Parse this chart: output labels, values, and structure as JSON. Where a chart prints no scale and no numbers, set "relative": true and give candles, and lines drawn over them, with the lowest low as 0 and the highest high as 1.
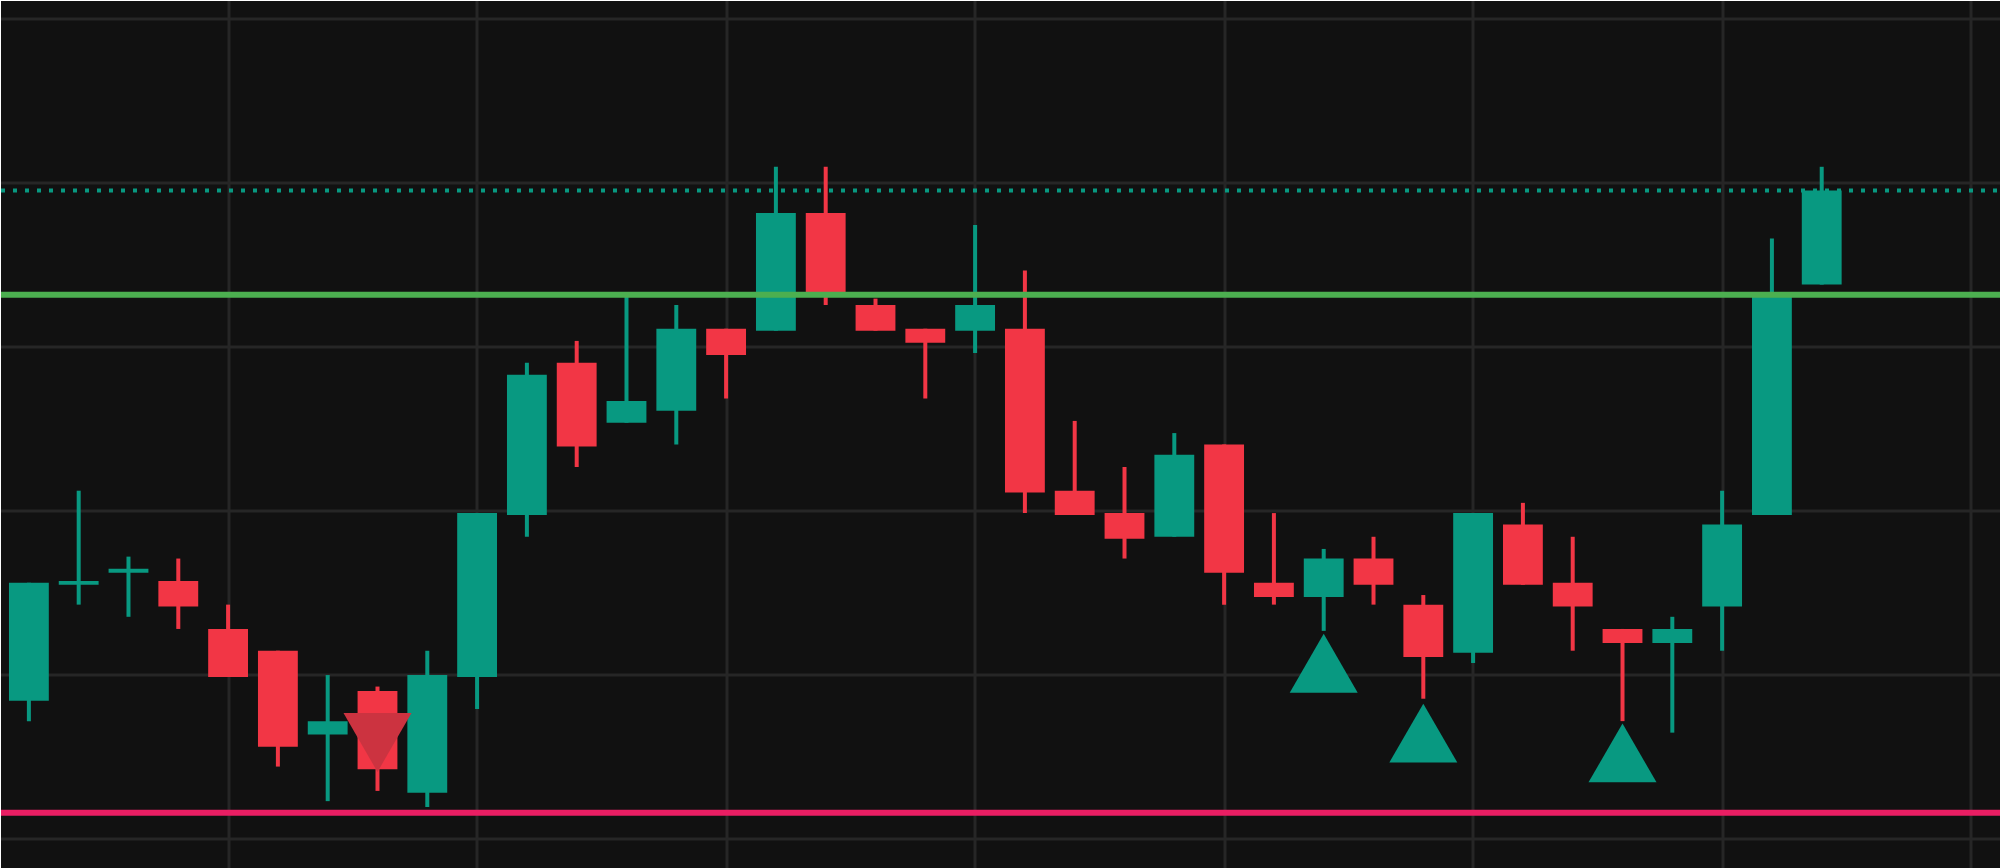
{
  "chart_data": {
    "type": "candlestick",
    "relative": true,
    "grid": true,
    "categories": [
      null,
      null,
      null,
      null,
      null,
      null,
      null,
      null,
      null,
      null,
      null,
      null,
      null,
      null,
      null,
      null,
      null,
      null,
      null,
      null,
      null,
      null,
      null,
      null,
      null,
      null,
      null,
      null,
      null,
      null,
      null,
      null,
      null,
      null,
      null,
      null,
      null
    ],
    "ohlc": [
      [
        0.166,
        0.35,
        0.134,
        0.35
      ],
      [
        0.347,
        0.494,
        0.316,
        0.353
      ],
      [
        0.366,
        0.391,
        0.297,
        0.372
      ],
      [
        0.353,
        0.388,
        0.278,
        0.313
      ],
      [
        0.278,
        0.316,
        0.203,
        0.203
      ],
      [
        0.244,
        0.244,
        0.063,
        0.094
      ],
      [
        0.113,
        0.206,
        0.009,
        0.134
      ],
      [
        0.181,
        0.188,
        0.025,
        0.059
      ],
      [
        0.022,
        0.244,
        0,
        0.206
      ],
      [
        0.203,
        0.459,
        0.153,
        0.459
      ],
      [
        0.456,
        0.694,
        0.422,
        0.675
      ],
      [
        0.694,
        0.728,
        0.531,
        0.563
      ],
      [
        0.6,
        0.8,
        0.6,
        0.634
      ],
      [
        0.619,
        0.784,
        0.566,
        0.747
      ],
      [
        0.747,
        0.747,
        0.638,
        0.706
      ],
      [
        0.744,
        1.0,
        0.744,
        0.928
      ],
      [
        0.928,
        1.0,
        0.784,
        0.8
      ],
      [
        0.784,
        0.794,
        0.744,
        0.744
      ],
      [
        0.747,
        0.747,
        0.638,
        0.725
      ],
      [
        0.744,
        0.909,
        0.709,
        0.784
      ],
      [
        0.747,
        0.838,
        0.459,
        0.491
      ],
      [
        0.494,
        0.603,
        0.456,
        0.456
      ],
      [
        0.459,
        0.531,
        0.388,
        0.419
      ],
      [
        0.422,
        0.584,
        0.422,
        0.55
      ],
      [
        0.566,
        0.566,
        0.316,
        0.366
      ],
      [
        0.35,
        0.459,
        0.316,
        0.328
      ],
      [
        0.328,
        0.403,
        0.275,
        0.388
      ],
      [
        0.388,
        0.422,
        0.316,
        0.347
      ],
      [
        0.316,
        0.331,
        0.169,
        0.234
      ],
      [
        0.241,
        0.459,
        0.225,
        0.459
      ],
      [
        0.441,
        0.475,
        0.347,
        0.347
      ],
      [
        0.35,
        0.422,
        0.244,
        0.313
      ],
      [
        0.278,
        0.278,
        0.134,
        0.256
      ],
      [
        0.256,
        0.297,
        0.116,
        0.278
      ],
      [
        0.313,
        0.494,
        0.244,
        0.441
      ],
      [
        0.456,
        0.888,
        0.456,
        0.8
      ],
      [
        0.816,
        1.0,
        0.816,
        0.963
      ]
    ],
    "colors": [
      "#089981",
      "#089981",
      "#089981",
      "#f23645",
      "#f23645",
      "#f23645",
      "#089981",
      "#f23645",
      "#089981",
      "#089981",
      "#089981",
      "#f23645",
      "#089981",
      "#089981",
      "#f23645",
      "#089981",
      "#f23645",
      "#f23645",
      "#f23645",
      "#089981",
      "#f23645",
      "#f23645",
      "#f23645",
      "#089981",
      "#f23645",
      "#f23645",
      "#089981",
      "#f23645",
      "#f23645",
      "#089981",
      "#f23645",
      "#f23645",
      "#f23645",
      "#089981",
      "#089981",
      "#089981",
      "#089981"
    ],
    "series": [
      {
        "type": "scatter",
        "marker": "triangle",
        "color": "#089981",
        "values": [
          null,
          null,
          null,
          null,
          null,
          null,
          null,
          null,
          null,
          null,
          null,
          null,
          null,
          null,
          null,
          null,
          null,
          null,
          null,
          null,
          null,
          null,
          null,
          null,
          null,
          null,
          0.209,
          null,
          0.1,
          null,
          null,
          null,
          0.069,
          null,
          null,
          null,
          null
        ]
      },
      {
        "type": "scatter",
        "marker": "triangle",
        "color": "#cc3340",
        "values": [
          null,
          null,
          null,
          null,
          null,
          null,
          null,
          0.116,
          null,
          null,
          null,
          null,
          null,
          null,
          null,
          null,
          null,
          null,
          null,
          null,
          null,
          null,
          null,
          null,
          null,
          null,
          null,
          null,
          null,
          null,
          null,
          null,
          null,
          null,
          null,
          null,
          null
        ]
      }
    ],
    "ref_lines": [
      {
        "axis": "y",
        "value": 0.963,
        "color": "#089981",
        "line_style": "dotted"
      },
      {
        "axis": "y",
        "value": 0.8,
        "color": "#4caf50",
        "line_style": "solid"
      },
      {
        "axis": "y",
        "value": -0.009,
        "color": "#e91e63",
        "line_style": "solid"
      }
    ]
  }
}
